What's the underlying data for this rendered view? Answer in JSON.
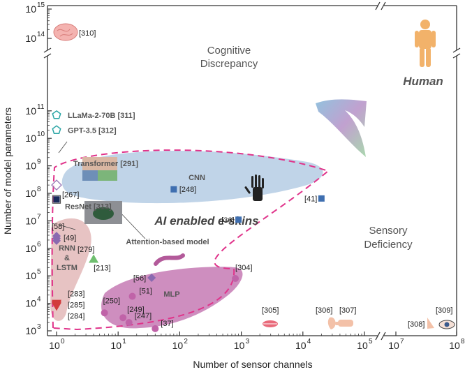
{
  "chart_data": {
    "type": "scatter",
    "xlabel": "Number of sensor channels",
    "ylabel": "Number of model parameters",
    "x_scale": "log (broken axis between 10^5 and 10^7)",
    "y_scale": "log (broken axis between 10^11 and 10^14)",
    "xlim": [
      0.7,
      100000000
    ],
    "ylim": [
      700,
      1000000000000000
    ],
    "x_ticks": [
      {
        "value": 1,
        "mant": "10",
        "exp": "0"
      },
      {
        "value": 10,
        "mant": "10",
        "exp": "1"
      },
      {
        "value": 100,
        "mant": "10",
        "exp": "2"
      },
      {
        "value": 1000,
        "mant": "10",
        "exp": "3"
      },
      {
        "value": 10000,
        "mant": "10",
        "exp": "4"
      },
      {
        "value": 100000,
        "mant": "10",
        "exp": "5"
      },
      {
        "value": 10000000,
        "mant": "10",
        "exp": "7"
      },
      {
        "value": 100000000,
        "mant": "10",
        "exp": "8"
      }
    ],
    "y_ticks": [
      {
        "value": 1000,
        "mant": "10",
        "exp": "3"
      },
      {
        "value": 10000,
        "mant": "10",
        "exp": "4"
      },
      {
        "value": 100000,
        "mant": "10",
        "exp": "5"
      },
      {
        "value": 1000000,
        "mant": "10",
        "exp": "6"
      },
      {
        "value": 10000000,
        "mant": "10",
        "exp": "7"
      },
      {
        "value": 100000000,
        "mant": "10",
        "exp": "8"
      },
      {
        "value": 1000000000,
        "mant": "10",
        "exp": "9"
      },
      {
        "value": 10000000000,
        "mant": "10",
        "exp": "10"
      },
      {
        "value": 100000000000,
        "mant": "10",
        "exp": "11"
      },
      {
        "value": 100000000000000,
        "mant": "10",
        "exp": "14"
      },
      {
        "value": 1000000000000000,
        "mant": "10",
        "exp": "15"
      }
    ],
    "points": [
      {
        "label": "[248]",
        "x": 80,
        "y": 140000000,
        "shape": "square",
        "color": "#3f6fb0"
      },
      {
        "label": "[41]",
        "x": 20000,
        "y": 65000000,
        "shape": "square",
        "color": "#3f6fb0"
      },
      {
        "label": "[36]",
        "x": 900,
        "y": 11000000,
        "shape": "square",
        "color": "#3f6fb0"
      },
      {
        "label": "[267]",
        "x": 1,
        "y": 60000000,
        "shape": "square",
        "color": "#1a2a5a"
      },
      {
        "label": "ResNet [313]",
        "x": 1,
        "y": 60000000,
        "shape": "square-open",
        "color": "#555555"
      },
      {
        "label": "Transformer [291]",
        "x": 1,
        "y": 200000000,
        "shape": "diamond-open",
        "color": "#9a7ab8"
      },
      {
        "label": "LLaMa-2-70B [311]",
        "x": 1,
        "y": 70000000000,
        "shape": "pentagon-open",
        "color": "#2aa5a5"
      },
      {
        "label": "GPT-3.5 [312]",
        "x": 1,
        "y": 20000000000,
        "shape": "pentagon-open",
        "color": "#2aa5a5"
      },
      {
        "label": "[58]",
        "x": 1,
        "y": 2800000,
        "shape": "diamond",
        "color": "#8a6ab0"
      },
      {
        "label": "[49]",
        "x": 1,
        "y": 2300000,
        "shape": "diamond",
        "color": "#8a6ab0"
      },
      {
        "label": "[279]",
        "x": 1,
        "y": 1900000,
        "shape": "diamond",
        "color": "#8a6ab0"
      },
      {
        "label": "[213]",
        "x": 4,
        "y": 400000,
        "shape": "triangle",
        "color": "#6fbf6f"
      },
      {
        "label": "[56]",
        "x": 35,
        "y": 85000,
        "shape": "diamond",
        "color": "#8a6ab0"
      },
      {
        "label": "[283]",
        "x": 1,
        "y": 10000,
        "shape": "triangle-down",
        "color": "#d23c3c"
      },
      {
        "label": "[285]",
        "x": 1,
        "y": 9000,
        "shape": "triangle-down",
        "color": "#d23c3c"
      },
      {
        "label": "[284]",
        "x": 1,
        "y": 8000,
        "shape": "triangle-down",
        "color": "#d23c3c"
      },
      {
        "label": "[304]",
        "x": 800,
        "y": 80000,
        "shape": "circle",
        "color": "#c063a8"
      },
      {
        "label": "[51]",
        "x": 17,
        "y": 18000,
        "shape": "circle",
        "color": "#c063a8"
      },
      {
        "label": "[250]",
        "x": 6,
        "y": 4500,
        "shape": "circle",
        "color": "#c063a8"
      },
      {
        "label": "[249]",
        "x": 12,
        "y": 3000,
        "shape": "circle",
        "color": "#c063a8"
      },
      {
        "label": "[247]",
        "x": 15,
        "y": 2000,
        "shape": "circle",
        "color": "#c063a8"
      },
      {
        "label": "[37]",
        "x": 40,
        "y": 1200,
        "shape": "circle",
        "color": "#c063a8"
      }
    ],
    "icon_refs": [
      {
        "label": "[310]",
        "icon": "brain-icon"
      },
      {
        "label": "[305]",
        "icon": "mouth-icon"
      },
      {
        "label": "[306]",
        "icon": "ear-icon"
      },
      {
        "label": "[307]",
        "icon": "hand-icon"
      },
      {
        "label": "[308]",
        "icon": "nose-icon"
      },
      {
        "label": "[309]",
        "icon": "eye-icon"
      }
    ],
    "annotations": {
      "cognitive": "Cognitive\nDiscrepancy",
      "human": "Human",
      "sensory": "Sensory\nDeficiency",
      "ai_skins": "AI enabled e-skins",
      "cnn": "CNN",
      "mlp": "MLP",
      "rnn": "RNN\n&\nLSTM",
      "attention": "Attention-based model"
    },
    "colors": {
      "cnn_region": "#b9cfe6",
      "mlp_region": "#c982b8",
      "rnn_region": "#e3b8b8",
      "boundary_dash": "#e0338a",
      "human": "#f2b26a",
      "text_dark": "#555555"
    },
    "grid": false
  }
}
